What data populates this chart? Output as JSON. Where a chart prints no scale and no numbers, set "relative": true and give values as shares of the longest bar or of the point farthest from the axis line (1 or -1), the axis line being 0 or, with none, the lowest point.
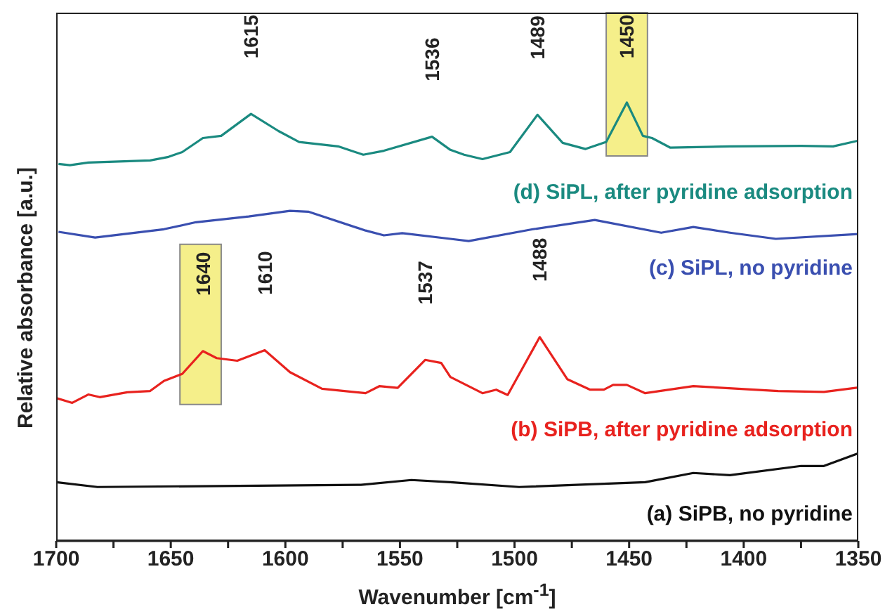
{
  "chart_data": {
    "type": "line",
    "relative": true,
    "xlabel": "Wavenumber  [cm$^{-1}$]",
    "ylabel": "Relative absorbance [a.u.]",
    "xlim": [
      1700,
      1350
    ],
    "xticks": [
      1700,
      {
        "value": 1675,
        "label": null
      },
      1650,
      {
        "value": 1625,
        "label": null
      },
      1600,
      {
        "value": 1575,
        "label": null
      },
      1550,
      {
        "value": 1525,
        "label": null
      },
      1500,
      {
        "value": 1475,
        "label": null
      },
      1450,
      {
        "value": 1425,
        "label": null
      },
      1400,
      {
        "value": 1375,
        "label": null
      },
      1350
    ],
    "grid": false,
    "marker": "none",
    "line_style": "solid",
    "series": [
      {
        "name": "(d) SiPL, after pyridine adsorption",
        "color": "#1a8a80",
        "x": [
          1699,
          1694,
          1686,
          1659,
          1651,
          1645,
          1636,
          1628,
          1615,
          1603,
          1594,
          1577,
          1566,
          1557,
          1536,
          1528,
          1522,
          1514,
          1502,
          1490,
          1479,
          1469,
          1460,
          1451,
          1444,
          1440,
          1432,
          1406,
          1375,
          1361,
          1350
        ],
        "values": [
          0.86,
          0.857,
          0.863,
          0.868,
          0.876,
          0.887,
          0.919,
          0.924,
          0.974,
          0.935,
          0.91,
          0.9,
          0.881,
          0.89,
          0.922,
          0.892,
          0.881,
          0.871,
          0.887,
          0.972,
          0.908,
          0.894,
          0.91,
          1.0,
          0.924,
          0.919,
          0.897,
          0.9,
          0.901,
          0.9,
          0.913
        ]
      },
      {
        "name": "(c) SiPL, no pyridine",
        "color": "#3a4fb0",
        "x": [
          1699,
          1683,
          1653,
          1639,
          1616,
          1598,
          1590,
          1565,
          1557,
          1549,
          1528,
          1520,
          1492,
          1465,
          1436,
          1422,
          1406,
          1386,
          1350
        ],
        "values": [
          0.705,
          0.692,
          0.711,
          0.727,
          0.74,
          0.753,
          0.751,
          0.708,
          0.697,
          0.702,
          0.689,
          0.684,
          0.711,
          0.732,
          0.703,
          0.716,
          0.703,
          0.689,
          0.7
        ]
      },
      {
        "name": "(b) SiPB, after pyridine adsorption",
        "color": "#e8221e",
        "x": [
          1700,
          1693,
          1686,
          1681,
          1669,
          1659,
          1653,
          1645,
          1636,
          1630,
          1621,
          1609,
          1598,
          1584,
          1565,
          1559,
          1551,
          1539,
          1532,
          1528,
          1514,
          1508,
          1503,
          1489,
          1477,
          1467,
          1461,
          1457,
          1451,
          1443,
          1422,
          1385,
          1365,
          1350
        ],
        "values": [
          0.326,
          0.315,
          0.334,
          0.328,
          0.339,
          0.342,
          0.365,
          0.381,
          0.433,
          0.417,
          0.411,
          0.435,
          0.385,
          0.347,
          0.337,
          0.353,
          0.349,
          0.413,
          0.406,
          0.374,
          0.337,
          0.345,
          0.333,
          0.465,
          0.369,
          0.345,
          0.345,
          0.356,
          0.356,
          0.337,
          0.353,
          0.342,
          0.34,
          0.35
        ]
      },
      {
        "name": "(a) SiPB, no pyridine",
        "color": "#111111",
        "x": [
          1700,
          1682,
          1567,
          1545,
          1528,
          1498,
          1443,
          1422,
          1406,
          1375,
          1365,
          1350
        ],
        "values": [
          0.134,
          0.123,
          0.128,
          0.139,
          0.134,
          0.123,
          0.134,
          0.155,
          0.15,
          0.171,
          0.171,
          0.2
        ]
      }
    ],
    "annotations": [
      {
        "text": "1615",
        "x": 1615,
        "y": 0.974
      },
      {
        "text": "1536",
        "x": 1536,
        "y": 0.922
      },
      {
        "text": "1489",
        "x": 1490,
        "y": 0.972
      },
      {
        "text": "1450",
        "x": 1451,
        "y": 1.0
      },
      {
        "text": "1640",
        "x": 1636,
        "y": 0.433
      },
      {
        "text": "1610",
        "x": 1609,
        "y": 0.435
      },
      {
        "text": "1537",
        "x": 1539,
        "y": 0.413
      },
      {
        "text": "1488",
        "x": 1489,
        "y": 0.465
      }
    ],
    "bands": [
      {
        "axis": "x",
        "from": 1646,
        "to": 1628,
        "color": "#f5ef8a"
      },
      {
        "axis": "x",
        "from": 1460,
        "to": 1442,
        "color": "#f5ef8a"
      }
    ]
  }
}
